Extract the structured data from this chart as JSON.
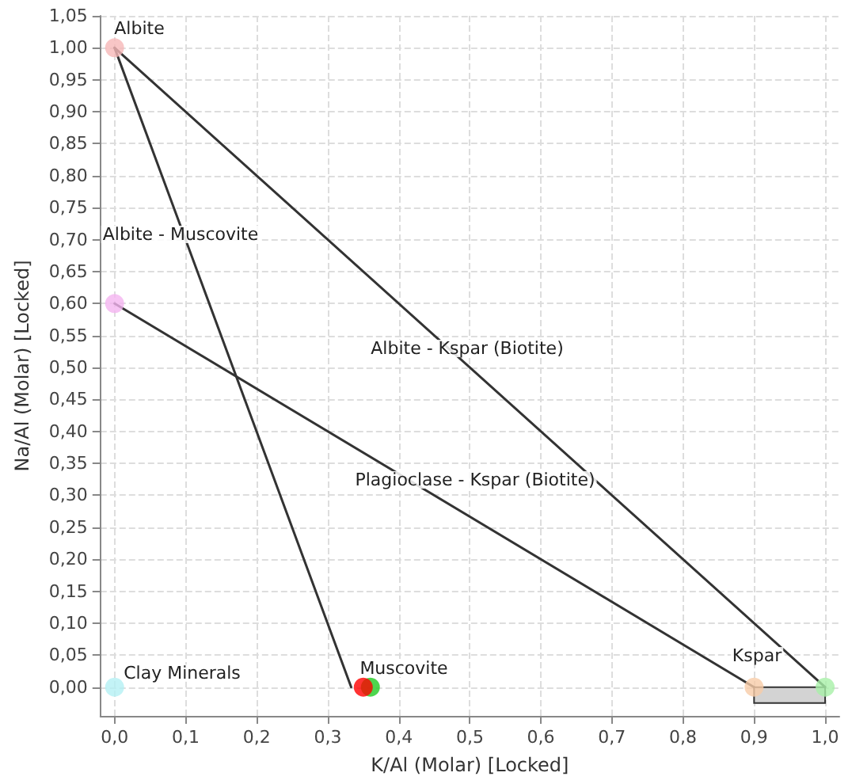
{
  "chart_data": {
    "type": "line",
    "xlabel": "K/Al (Molar) [Locked]",
    "ylabel": "Na/Al (Molar) [Locked]",
    "xlim": [
      -0.02,
      1.02
    ],
    "ylim": [
      -0.045,
      1.05
    ],
    "xticks": [
      {
        "value": 0,
        "label": "0,0"
      },
      {
        "value": 0.1,
        "label": "0,1"
      },
      {
        "value": 0.2,
        "label": "0,2"
      },
      {
        "value": 0.3,
        "label": "0,3"
      },
      {
        "value": 0.4,
        "label": "0,4"
      },
      {
        "value": 0.5,
        "label": "0,5"
      },
      {
        "value": 0.6,
        "label": "0,6"
      },
      {
        "value": 0.7,
        "label": "0,7"
      },
      {
        "value": 0.8,
        "label": "0,8"
      },
      {
        "value": 0.9,
        "label": "0,9"
      },
      {
        "value": 1,
        "label": "1,0"
      }
    ],
    "yticks": [
      {
        "value": 0,
        "label": "0,00"
      },
      {
        "value": 0.05,
        "label": "0,05"
      },
      {
        "value": 0.1,
        "label": "0,10"
      },
      {
        "value": 0.15,
        "label": "0,15"
      },
      {
        "value": 0.2,
        "label": "0,20"
      },
      {
        "value": 0.25,
        "label": "0,25"
      },
      {
        "value": 0.3,
        "label": "0,30"
      },
      {
        "value": 0.35,
        "label": "0,35"
      },
      {
        "value": 0.4,
        "label": "0,40"
      },
      {
        "value": 0.45,
        "label": "0,45"
      },
      {
        "value": 0.5,
        "label": "0,50"
      },
      {
        "value": 0.55,
        "label": "0,55"
      },
      {
        "value": 0.6,
        "label": "0,60"
      },
      {
        "value": 0.65,
        "label": "0,65"
      },
      {
        "value": 0.7,
        "label": "0,70"
      },
      {
        "value": 0.75,
        "label": "0,75"
      },
      {
        "value": 0.8,
        "label": "0,80"
      },
      {
        "value": 0.85,
        "label": "0,85"
      },
      {
        "value": 0.9,
        "label": "0,90"
      },
      {
        "value": 0.95,
        "label": "0,95"
      },
      {
        "value": 1,
        "label": "1,00"
      },
      {
        "value": 1.05,
        "label": "1,05"
      }
    ],
    "grid": true,
    "line_style": "solid",
    "series": [
      {
        "type": "area",
        "color": "#d3d3d3",
        "x": [
          0.9,
          1,
          1,
          0.9
        ],
        "values": [
          0,
          0,
          -0.025,
          -0.025
        ]
      },
      {
        "color": "#333333",
        "marker": "none",
        "x": [
          0,
          0.333
        ],
        "values": [
          1,
          0
        ]
      },
      {
        "color": "#333333",
        "marker": "none",
        "x": [
          0,
          1
        ],
        "values": [
          1,
          0
        ]
      },
      {
        "color": "#333333",
        "marker": "none",
        "x": [
          0,
          0.9
        ],
        "values": [
          0.6,
          0
        ]
      },
      {
        "type": "scatter",
        "marker": "circle",
        "x": [
          0,
          0,
          0,
          0.36,
          0.35,
          0.9,
          1
        ],
        "values": [
          1,
          0.6,
          0,
          0,
          0,
          0,
          0
        ],
        "colors": [
          "#f6b8b8",
          "#f4b4f0",
          "#b4f0f4",
          "#22cc22",
          "#ff0000",
          "#f8cca8",
          "#a8f0a8"
        ]
      }
    ],
    "annotations": [
      "Albite",
      "Albite - Muscovite",
      "Albite - Kspar (Biotite)",
      "Plagioclase - Kspar (Biotite)",
      "Clay Minerals",
      "Muscovite",
      "Kspar"
    ]
  }
}
